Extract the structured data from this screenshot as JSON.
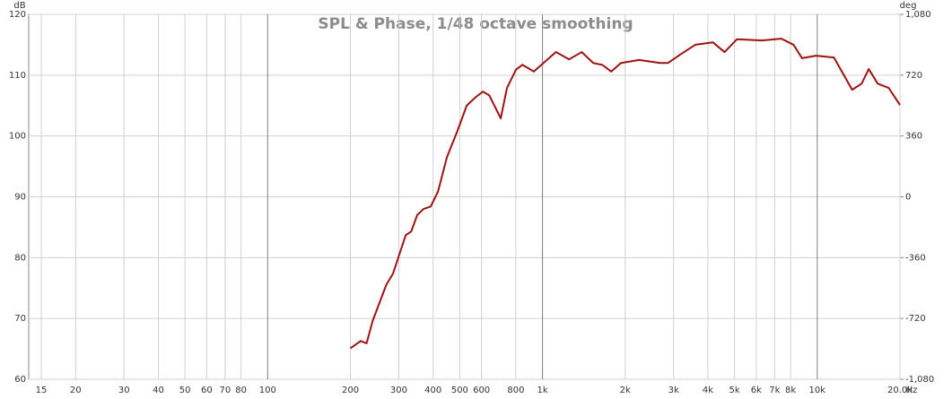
{
  "chart_data": {
    "type": "line",
    "title": "SPL & Phase, 1/48 octave smoothing",
    "y_label": "dB",
    "y2_label": "deg",
    "x_label": "Hz",
    "x_scale": "log",
    "grid": true,
    "xlim": [
      13.5,
      20000
    ],
    "xticks": [
      15,
      20,
      30,
      40,
      50,
      60,
      70,
      80,
      100,
      200,
      300,
      400,
      500,
      600,
      800,
      {
        "value": 1000,
        "label": "1k"
      },
      {
        "value": 2000,
        "label": "2k"
      },
      {
        "value": 3000,
        "label": "3k"
      },
      {
        "value": 4000,
        "label": "4k"
      },
      {
        "value": 5000,
        "label": "5k"
      },
      {
        "value": 6000,
        "label": "6k"
      },
      {
        "value": 7000,
        "label": "7k"
      },
      {
        "value": 8000,
        "label": "8k"
      },
      {
        "value": 10000,
        "label": "10k"
      },
      {
        "value": 20000,
        "label": "20.0k"
      }
    ],
    "ylim": [
      60,
      120
    ],
    "yticks": [
      60,
      70,
      80,
      90,
      100,
      110,
      120
    ],
    "y2lim": [
      -1080,
      1080
    ],
    "y2ticks": [
      {
        "value": -1080,
        "label": "-1,080"
      },
      -720,
      -360,
      0,
      360,
      720,
      {
        "value": 1080,
        "label": "1,080"
      }
    ],
    "x": [
      200,
      218,
      229,
      241,
      270,
      286,
      318,
      333,
      350,
      369,
      392,
      417,
      449,
      492,
      530,
      572,
      607,
      640,
      705,
      743,
      801,
      845,
      930,
      1120,
      1250,
      1390,
      1530,
      1650,
      1780,
      1930,
      2250,
      2680,
      2860,
      3200,
      3600,
      4170,
      4600,
      5100,
      6300,
      7400,
      8200,
      8800,
      9900,
      11500,
      13400,
      14500,
      15400,
      16600,
      18200,
      20000
    ],
    "series": [
      {
        "name": "SPL",
        "color": "#a01212",
        "values": [
          65.1,
          66.3,
          65.9,
          69.6,
          75.5,
          77.4,
          83.7,
          84.3,
          87,
          88,
          88.4,
          90.9,
          96.5,
          101,
          105,
          106.4,
          107.3,
          106.7,
          102.9,
          107.9,
          110.9,
          111.7,
          110.6,
          113.8,
          112.6,
          113.8,
          112,
          111.7,
          110.6,
          112,
          112.5,
          112,
          112,
          113.5,
          115,
          115.4,
          113.8,
          115.9,
          115.7,
          116,
          115,
          112.8,
          113.2,
          112.9,
          107.6,
          108.6,
          111,
          108.6,
          107.9,
          105.1
        ]
      }
    ]
  }
}
